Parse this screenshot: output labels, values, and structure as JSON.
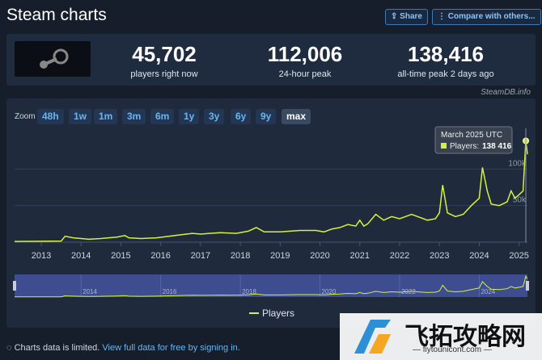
{
  "header": {
    "title": "Steam charts",
    "share": "Share",
    "compare": "Compare with others..."
  },
  "stats": [
    {
      "value": "45,702",
      "label": "players right now"
    },
    {
      "value": "112,006",
      "label": "24-hour peak"
    },
    {
      "value": "138,416",
      "label": "all-time peak 2 days ago"
    }
  ],
  "credit": "SteamDB.info",
  "zoom": {
    "label": "Zoom",
    "buttons": [
      "48h",
      "1w",
      "1m",
      "3m",
      "6m",
      "1y",
      "3y",
      "6y",
      "9y",
      "max"
    ]
  },
  "chart_data": {
    "type": "line",
    "x": [
      2012.33,
      2013.0,
      2013.5,
      2013.6,
      2013.8,
      2014.0,
      2014.2,
      2014.5,
      2014.9,
      2015.1,
      2015.2,
      2015.5,
      2015.9,
      2016.2,
      2016.5,
      2016.8,
      2017.0,
      2017.5,
      2017.9,
      2018.2,
      2018.4,
      2018.6,
      2019.0,
      2019.5,
      2019.9,
      2020.1,
      2020.3,
      2020.5,
      2020.7,
      2020.9,
      2021.0,
      2021.1,
      2021.2,
      2021.4,
      2021.6,
      2021.8,
      2022.0,
      2022.3,
      2022.5,
      2022.7,
      2022.9,
      2023.0,
      2023.08,
      2023.2,
      2023.4,
      2023.6,
      2023.8,
      2024.0,
      2024.08,
      2024.2,
      2024.3,
      2024.5,
      2024.7,
      2024.8,
      2024.9,
      2025.0,
      2025.1,
      2025.17,
      2025.21
    ],
    "series": [
      {
        "name": "Players",
        "color": "#d4f23a",
        "values": [
          1000,
          1200,
          1500,
          8000,
          6000,
          5000,
          4000,
          5000,
          7000,
          9000,
          6000,
          5000,
          6000,
          8000,
          10000,
          12000,
          11000,
          13000,
          12000,
          15000,
          20000,
          14000,
          14000,
          16000,
          16000,
          14000,
          18000,
          20000,
          24000,
          22000,
          30000,
          22000,
          25000,
          38000,
          30000,
          35000,
          32000,
          38000,
          34000,
          30000,
          32000,
          40000,
          78000,
          40000,
          35000,
          38000,
          50000,
          60000,
          102000,
          70000,
          52000,
          50000,
          55000,
          70000,
          60000,
          65000,
          70000,
          138416,
          120000
        ]
      }
    ],
    "xlim": [
      2012.33,
      2025.21
    ],
    "xticks": [
      2013,
      2014,
      2015,
      2016,
      2017,
      2018,
      2019,
      2020,
      2021,
      2022,
      2023,
      2024,
      2025
    ],
    "ylim": [
      0,
      150000
    ],
    "yticks": [
      {
        "value": 50000,
        "label": "50k"
      },
      {
        "value": 100000,
        "label": "100k"
      }
    ],
    "grid": true,
    "tooltip": {
      "title": "March 2025 UTC",
      "label": "Players:",
      "value_label": "138 416"
    },
    "navigator_ticks": [
      2014,
      2016,
      2018,
      2020,
      2022,
      2024
    ]
  },
  "footer": {
    "notice": "Charts data is limited.",
    "link": "View full data for free by signing in."
  },
  "watermark": {
    "title": "飞拓攻略网",
    "url": "— fiytounicont.com —"
  }
}
